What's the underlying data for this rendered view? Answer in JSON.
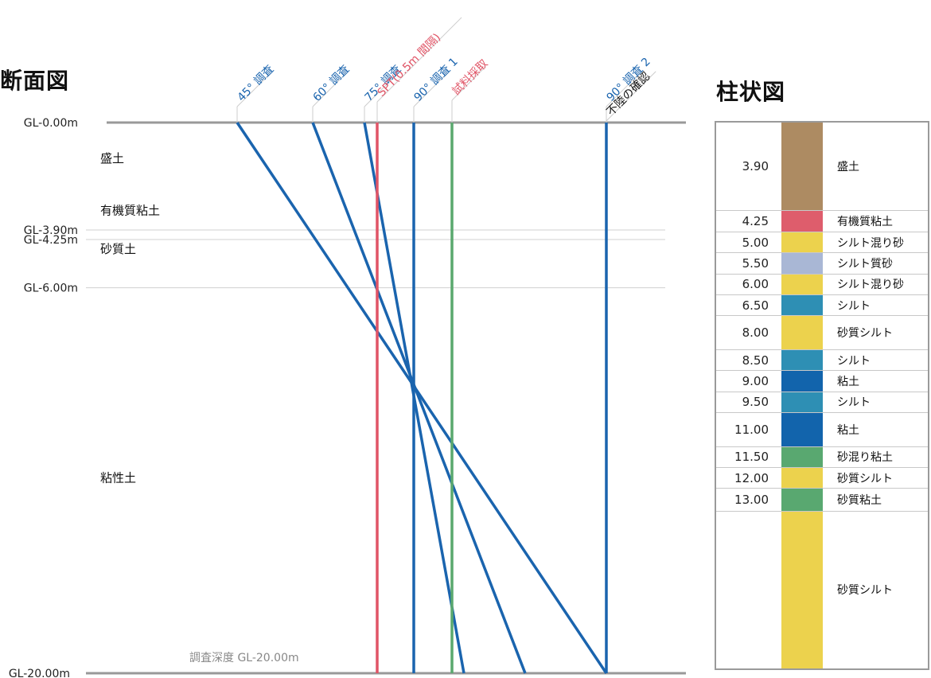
{
  "section": {
    "title": "断面図",
    "gl_labels": [
      "GL-0.00m",
      "GL-3.90m",
      "GL-4.25m",
      "GL-6.00m",
      "GL-20.00m"
    ],
    "gl_depths": [
      0,
      3.9,
      4.25,
      6.0,
      20.0
    ],
    "layers": [
      {
        "name": "盛土",
        "depth_center": 1.3
      },
      {
        "name": "有機質粘土",
        "depth_center": 3.2
      },
      {
        "name": "砂質土",
        "depth_center": 4.6
      },
      {
        "name": "粘性土",
        "depth_center": 12.9
      }
    ],
    "survey_depth_label": "調査深度 GL-20.00m",
    "lines": [
      {
        "label": "45° 調査",
        "color": "#1a64ae",
        "top_x": 298,
        "bottom_x": 762,
        "tag_color": "#1a64ae"
      },
      {
        "label": "60° 調査",
        "color": "#1a64ae",
        "top_x": 393,
        "bottom_x": 660,
        "tag_color": "#1a64ae"
      },
      {
        "label": "75° 調査",
        "color": "#1a64ae",
        "top_x": 458,
        "bottom_x": 583,
        "tag_color": "#1a64ae"
      },
      {
        "label": "SPT(0.5m 間隔)",
        "color": "#e05466",
        "top_x": 474,
        "bottom_x": 474,
        "tag_color": "#e05466"
      },
      {
        "label": "90° 調査 1",
        "color": "#1a64ae",
        "top_x": 520,
        "bottom_x": 520,
        "tag_color": "#1a64ae"
      },
      {
        "label": "試料採取",
        "color": "#5aa86e",
        "top_x": 568,
        "bottom_x": 568,
        "tag_color": "#e05466"
      },
      {
        "label": "90° 調査 2",
        "color": "#1a64ae",
        "top_x": 762,
        "bottom_x": 762,
        "tag_color": "#1a64ae"
      },
      {
        "label": "不陸の確認",
        "color": "#1a64ae",
        "top_x": 762,
        "bottom_x": 762,
        "tag_color": "#111111",
        "label_only": true
      }
    ]
  },
  "column": {
    "title": "柱状図",
    "rows": [
      {
        "depth": "3.90",
        "name": "盛土",
        "color": "#ad8b62",
        "thickness": 3.9
      },
      {
        "depth": "4.25",
        "name": "有機質粘土",
        "color": "#de5d6c",
        "thickness": 0.35
      },
      {
        "depth": "5.00",
        "name": "シルト混り砂",
        "color": "#ecd24d",
        "thickness": 0.75
      },
      {
        "depth": "5.50",
        "name": "シルト質砂",
        "color": "#a9b7d5",
        "thickness": 0.5
      },
      {
        "depth": "6.00",
        "name": "シルト混り砂",
        "color": "#ecd24d",
        "thickness": 0.5
      },
      {
        "depth": "6.50",
        "name": "シルト",
        "color": "#2e8fb4",
        "thickness": 0.5
      },
      {
        "depth": "8.00",
        "name": "砂質シルト",
        "color": "#ecd24d",
        "thickness": 1.5
      },
      {
        "depth": "8.50",
        "name": "シルト",
        "color": "#2e8fb4",
        "thickness": 0.5
      },
      {
        "depth": "9.00",
        "name": "粘土",
        "color": "#1264ac",
        "thickness": 0.5
      },
      {
        "depth": "9.50",
        "name": "シルト",
        "color": "#2e8fb4",
        "thickness": 0.5
      },
      {
        "depth": "11.00",
        "name": "粘土",
        "color": "#1264ac",
        "thickness": 1.5
      },
      {
        "depth": "11.50",
        "name": "砂混り粘土",
        "color": "#59a870",
        "thickness": 0.5
      },
      {
        "depth": "12.00",
        "name": "砂質シルト",
        "color": "#ecd24d",
        "thickness": 0.5
      },
      {
        "depth": "13.00",
        "name": "砂質粘土",
        "color": "#59a870",
        "thickness": 1.0
      },
      {
        "depth": "",
        "name": "砂質シルト",
        "color": "#ecd24d",
        "thickness": 7.0
      }
    ]
  }
}
